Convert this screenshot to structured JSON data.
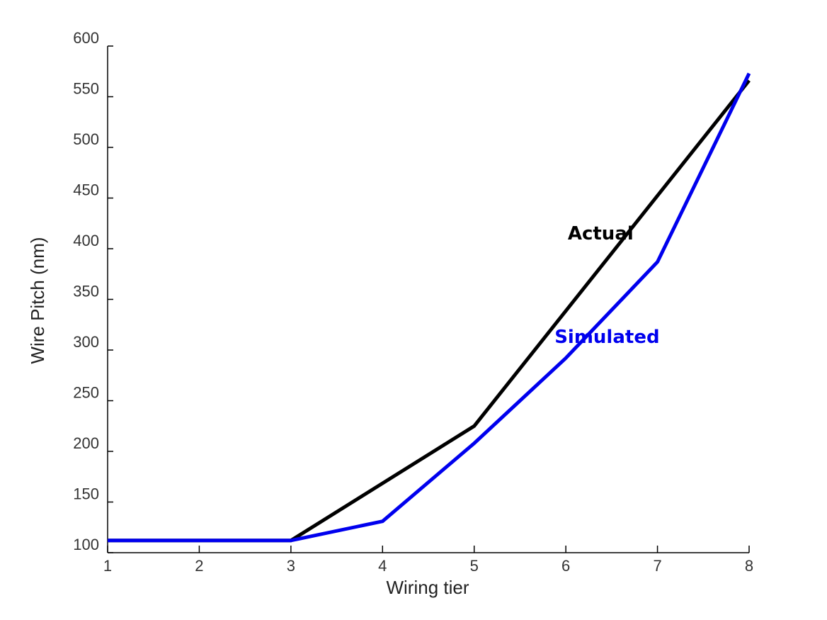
{
  "chart_data": {
    "type": "line",
    "title": "",
    "xlabel": "Wiring tier",
    "ylabel": "Wire Pitch (nm)",
    "x": [
      1,
      2,
      3,
      4,
      5,
      6,
      7,
      8
    ],
    "xlim": [
      1,
      8
    ],
    "ylim": [
      100,
      600
    ],
    "xticks": [
      "1",
      "2",
      "3",
      "4",
      "5",
      "6",
      "7",
      "8"
    ],
    "yticks": [
      "100",
      "150",
      "200",
      "250",
      "300",
      "350",
      "400",
      "450",
      "500",
      "550",
      "600"
    ],
    "grid": false,
    "legend": "inline labels",
    "series": [
      {
        "name": "Actual",
        "color": "#000000",
        "x": [
          1,
          2,
          3,
          5,
          8
        ],
        "values": [
          112,
          112,
          112,
          225,
          566
        ]
      },
      {
        "name": "Simulated",
        "color": "#0000ee",
        "x": [
          1,
          2,
          3,
          4,
          5,
          6,
          7,
          8
        ],
        "values": [
          112,
          112,
          112,
          131,
          208,
          292,
          387,
          573
        ]
      }
    ]
  }
}
